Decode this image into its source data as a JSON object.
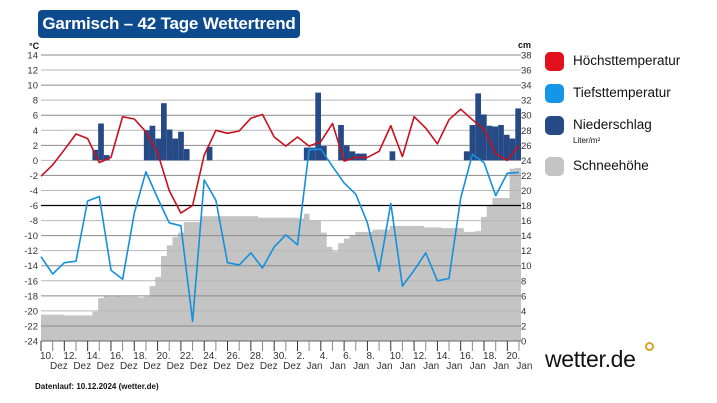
{
  "title": "Garmisch – 42 Tage Wettertrend",
  "footer": "Datenlauf: 10.12.2024 (wetter.de)",
  "logo": "wetter.de",
  "legend": [
    {
      "label": "Höchsttemperatur",
      "color": "#e3101b"
    },
    {
      "label": "Tiefsttemperatur",
      "color": "#1496e8"
    },
    {
      "label": "Niederschlag",
      "color": "#254a86",
      "unit": "Liter/m²"
    },
    {
      "label": "Schneehöhe",
      "color": "#c4c4c4"
    }
  ],
  "chart_data": {
    "type": "line+bar+area",
    "title": "Garmisch – 42 Tage Wettertrend",
    "y_left": {
      "label": "°C",
      "range": [
        -24,
        14
      ],
      "ticks": [
        14,
        12,
        10,
        8,
        6,
        4,
        2,
        0,
        -2,
        -4,
        -6,
        -8,
        -10,
        -12,
        -14,
        -16,
        -18,
        -20,
        -22,
        -24
      ]
    },
    "y_right": {
      "label": "cm",
      "range": [
        0,
        38
      ],
      "ticks": [
        38,
        36,
        34,
        32,
        30,
        28,
        26,
        24,
        22,
        20,
        18,
        16,
        14,
        12,
        10,
        8,
        6,
        4,
        2,
        0
      ]
    },
    "x_labels": [
      {
        "day": "10.",
        "month": "Dez"
      },
      {
        "day": "12.",
        "month": "Dez"
      },
      {
        "day": "14.",
        "month": "Dez"
      },
      {
        "day": "16.",
        "month": "Dez"
      },
      {
        "day": "18.",
        "month": "Dez"
      },
      {
        "day": "20.",
        "month": "Dez"
      },
      {
        "day": "22.",
        "month": "Dez"
      },
      {
        "day": "24.",
        "month": "Dez"
      },
      {
        "day": "26.",
        "month": "Dez"
      },
      {
        "day": "28.",
        "month": "Dez"
      },
      {
        "day": "30.",
        "month": "Dez"
      },
      {
        "day": "2.",
        "month": "Jan"
      },
      {
        "day": "4.",
        "month": "Jan"
      },
      {
        "day": "6.",
        "month": "Jan"
      },
      {
        "day": "8.",
        "month": "Jan"
      },
      {
        "day": "10.",
        "month": "Jan"
      },
      {
        "day": "12.",
        "month": "Jan"
      },
      {
        "day": "14.",
        "month": "Jan"
      },
      {
        "day": "16.",
        "month": "Jan"
      },
      {
        "day": "18.",
        "month": "Jan"
      },
      {
        "day": "20.",
        "month": "Jan"
      }
    ],
    "days": 42,
    "highlight_line_celsius": -6,
    "series": [
      {
        "name": "Höchsttemperatur",
        "unit": "°C",
        "type": "line",
        "values": [
          -2.1,
          -0.6,
          1.4,
          3.5,
          2.9,
          -0.3,
          0.4,
          5.8,
          5.5,
          3.8,
          1.0,
          -4.0,
          -7.0,
          -6.0,
          0.7,
          4.0,
          3.6,
          3.9,
          5.6,
          6.1,
          3.1,
          1.9,
          3.1,
          1.9,
          2.5,
          4.9,
          -0.1,
          0.4,
          0.4,
          1.2,
          4.6,
          0.5,
          5.8,
          4.3,
          2.2,
          5.4,
          6.8,
          5.4,
          4.1,
          0.9,
          0.0,
          2.0
        ]
      },
      {
        "name": "Tiefsttemperatur",
        "unit": "°C",
        "type": "line",
        "values": [
          -12.8,
          -15.1,
          -13.6,
          -13.4,
          -5.4,
          -4.8,
          -14.6,
          -15.8,
          -7.0,
          -1.5,
          -5.0,
          -8.3,
          -8.7,
          -21.4,
          -2.6,
          -5.3,
          -13.6,
          -13.9,
          -12.3,
          -14.3,
          -11.5,
          -9.9,
          -11.2,
          1.4,
          1.5,
          -0.8,
          -3.0,
          -4.5,
          -8.3,
          -14.7,
          -5.7,
          -16.7,
          -14.6,
          -12.3,
          -16.0,
          -15.7,
          -5.0,
          0.8,
          -0.3,
          -4.7,
          -1.7,
          -1.6
        ]
      },
      {
        "name": "Niederschlag",
        "unit": "Liter/m²",
        "type": "bar",
        "resolution": "12h",
        "values": [
          0,
          0,
          0,
          0,
          0,
          0,
          0,
          0,
          0,
          1.4,
          4.9,
          0.7,
          0,
          0,
          0,
          0,
          0,
          0,
          4.0,
          4.6,
          2.9,
          7.6,
          4.1,
          2.9,
          3.8,
          1.5,
          0,
          0,
          0,
          1.8,
          0,
          0,
          0,
          0,
          0,
          0,
          0,
          0,
          0,
          0,
          0,
          0,
          0,
          0,
          0,
          0,
          1.7,
          1.7,
          9.0,
          1.9,
          0,
          0,
          4.7,
          2.0,
          1.2,
          0.9,
          0.9,
          0,
          0,
          0,
          0,
          1.2,
          0,
          0,
          0,
          0,
          0,
          0,
          0,
          0,
          0,
          0,
          0,
          0,
          1.2,
          4.7,
          8.9,
          6.1,
          4.6,
          4.5,
          4.7,
          3.4,
          2.9,
          6.9
        ]
      },
      {
        "name": "Schneehöhe",
        "unit": "cm",
        "type": "area-step",
        "resolution": "12h",
        "values": [
          3.5,
          3.5,
          3.5,
          3.5,
          3.4,
          3.4,
          3.4,
          3.4,
          3.4,
          3.9,
          5.7,
          6.0,
          5.9,
          6.0,
          5.9,
          5.9,
          5.9,
          5.8,
          5.9,
          7.3,
          8.5,
          11.3,
          12.7,
          13.8,
          14.4,
          15.8,
          15.8,
          15.8,
          16.6,
          16.6,
          16.6,
          16.6,
          16.6,
          16.6,
          16.6,
          16.6,
          16.6,
          16.6,
          16.4,
          16.4,
          16.4,
          16.4,
          16.4,
          16.4,
          16.4,
          16.3,
          16.9,
          16.0,
          16.0,
          14.4,
          12.5,
          11.9,
          13.0,
          13.6,
          14.0,
          14.5,
          14.5,
          14.5,
          14.8,
          14.8,
          14.8,
          15.3,
          15.3,
          15.3,
          15.3,
          15.3,
          15.3,
          15.1,
          15.1,
          15.1,
          15.0,
          15.0,
          15.0,
          15.0,
          14.5,
          14.5,
          14.6,
          16.5,
          18.0,
          19.0,
          19.0,
          19.0,
          22.9,
          23.0
        ]
      }
    ]
  }
}
